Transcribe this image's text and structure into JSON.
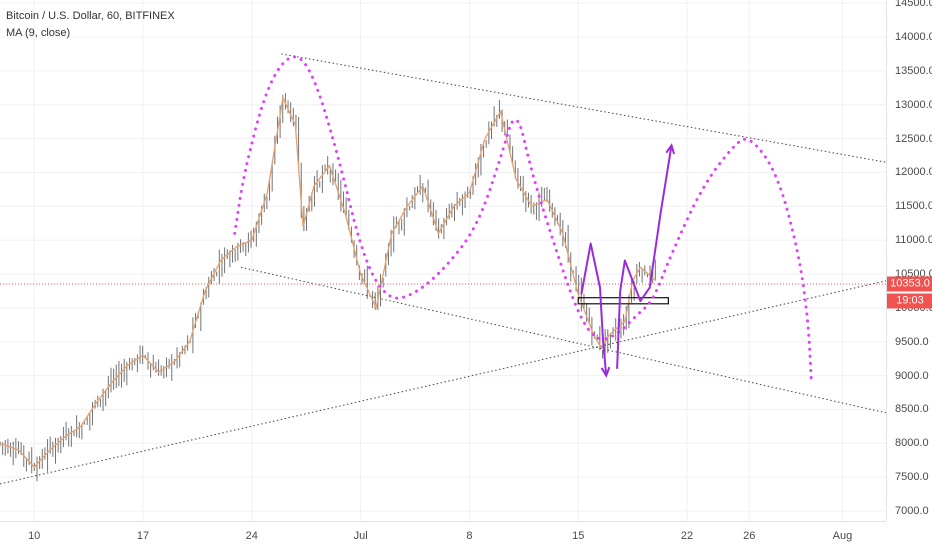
{
  "legend": {
    "symbol": "Bitcoin / U.S. Dollar, 60, BITFINEX",
    "indicator": "MA (9, close)"
  },
  "colors": {
    "price_line": "#e3a070",
    "candles": "#444444",
    "trendlines": "#444444",
    "projection_dotted": "#e040fb",
    "arrows": "#9b2bd8",
    "current_price_line": "#f05350",
    "grid": "#eef0f4"
  },
  "badges": {
    "current_price": "10353.0",
    "countdown": "19:03"
  },
  "chart_data": {
    "type": "line",
    "title": "Bitcoin / U.S. Dollar, 60, BITFINEX",
    "xlabel": "",
    "ylabel": "",
    "y_ticks": [
      "14500.0",
      "14000.0",
      "13500.0",
      "13000.0",
      "12500.0",
      "12000.0",
      "11500.0",
      "11000.0",
      "10500.0",
      "10000.0",
      "9500.0",
      "9000.0",
      "8500.0",
      "8000.0",
      "7500.0",
      "7000.0"
    ],
    "ylim": [
      6900,
      14600
    ],
    "x_ticks": [
      "10",
      "17",
      "24",
      "Jul",
      "8",
      "15",
      "22",
      "26",
      "Aug"
    ],
    "x_tick_days": [
      10,
      17,
      24,
      31,
      38,
      45,
      52,
      56,
      62
    ],
    "x_range_days": [
      7.8,
      64.8
    ],
    "grid": true,
    "current_price": 10353.0,
    "series": [
      {
        "name": "MA (9, close)",
        "x_days": [
          7.8,
          9,
          10,
          11,
          12,
          13,
          14,
          15,
          16,
          17,
          18,
          19,
          20,
          21,
          22,
          23,
          24,
          25,
          26,
          26.8,
          27.3,
          28,
          29,
          30,
          31,
          32,
          33,
          34,
          35,
          36,
          37,
          38,
          39,
          40,
          41,
          42,
          43,
          44,
          45,
          46,
          46.5,
          47,
          48,
          48.5,
          49,
          50
        ],
        "y": [
          8000,
          7900,
          7650,
          7900,
          8100,
          8250,
          8600,
          8900,
          9150,
          9300,
          9050,
          9200,
          9500,
          10250,
          10700,
          10900,
          11000,
          11700,
          13100,
          12700,
          11200,
          11800,
          12100,
          11400,
          10500,
          10000,
          11100,
          11500,
          11800,
          11100,
          11500,
          11700,
          12500,
          12900,
          11900,
          11500,
          11600,
          11100,
          10200,
          9600,
          9400,
          9600,
          9800,
          10400,
          10600,
          10400
        ]
      }
    ],
    "trendlines": [
      {
        "name": "upper resistance",
        "from": {
          "x_day": 25.9,
          "y": 13750
        },
        "to": {
          "x_day": 64.8,
          "y": 12150
        }
      },
      {
        "name": "lower support",
        "from": {
          "x_day": 23.3,
          "y": 10600
        },
        "to": {
          "x_day": 64.8,
          "y": 8450
        }
      },
      {
        "name": "rising support",
        "from": {
          "x_day": 7.8,
          "y": 7400
        },
        "to": {
          "x_day": 64.8,
          "y": 10400
        }
      }
    ],
    "horizontal_box": {
      "x_from_day": 45,
      "x_to_day": 50.8,
      "y_low": 10060,
      "y_high": 10150
    },
    "projection_path": [
      [
        22.9,
        11100
      ],
      [
        23.5,
        12000
      ],
      [
        25.0,
        13300
      ],
      [
        26.6,
        13800
      ],
      [
        27.9,
        13500
      ],
      [
        29.5,
        12300
      ],
      [
        31.2,
        10700
      ],
      [
        32.8,
        10100
      ],
      [
        34.5,
        10200
      ],
      [
        36.5,
        10600
      ],
      [
        38.5,
        11200
      ],
      [
        40.0,
        12200
      ],
      [
        41.0,
        13000
      ],
      [
        42.0,
        12000
      ],
      [
        43.5,
        10900
      ],
      [
        45.0,
        9900
      ],
      [
        46.2,
        9500
      ],
      [
        47.5,
        9600
      ],
      [
        48.8,
        9900
      ],
      [
        49.8,
        10100
      ],
      [
        51.0,
        10800
      ],
      [
        53.0,
        11800
      ],
      [
        55.0,
        12400
      ],
      [
        56.0,
        12550
      ],
      [
        57.8,
        12000
      ],
      [
        59.2,
        10800
      ],
      [
        59.8,
        9800
      ],
      [
        60.0,
        8900
      ]
    ],
    "arrows": [
      {
        "name": "down arrow",
        "points": [
          [
            45.2,
            10200
          ],
          [
            45.8,
            10950
          ],
          [
            46.4,
            10300
          ],
          [
            46.6,
            9500
          ],
          [
            46.8,
            9000
          ]
        ]
      },
      {
        "name": "up arrow",
        "points": [
          [
            47.5,
            9100
          ],
          [
            47.7,
            10250
          ],
          [
            48.0,
            10700
          ],
          [
            49.0,
            10100
          ],
          [
            49.6,
            10300
          ],
          [
            50.3,
            11400
          ],
          [
            51.0,
            12400
          ]
        ]
      }
    ]
  }
}
